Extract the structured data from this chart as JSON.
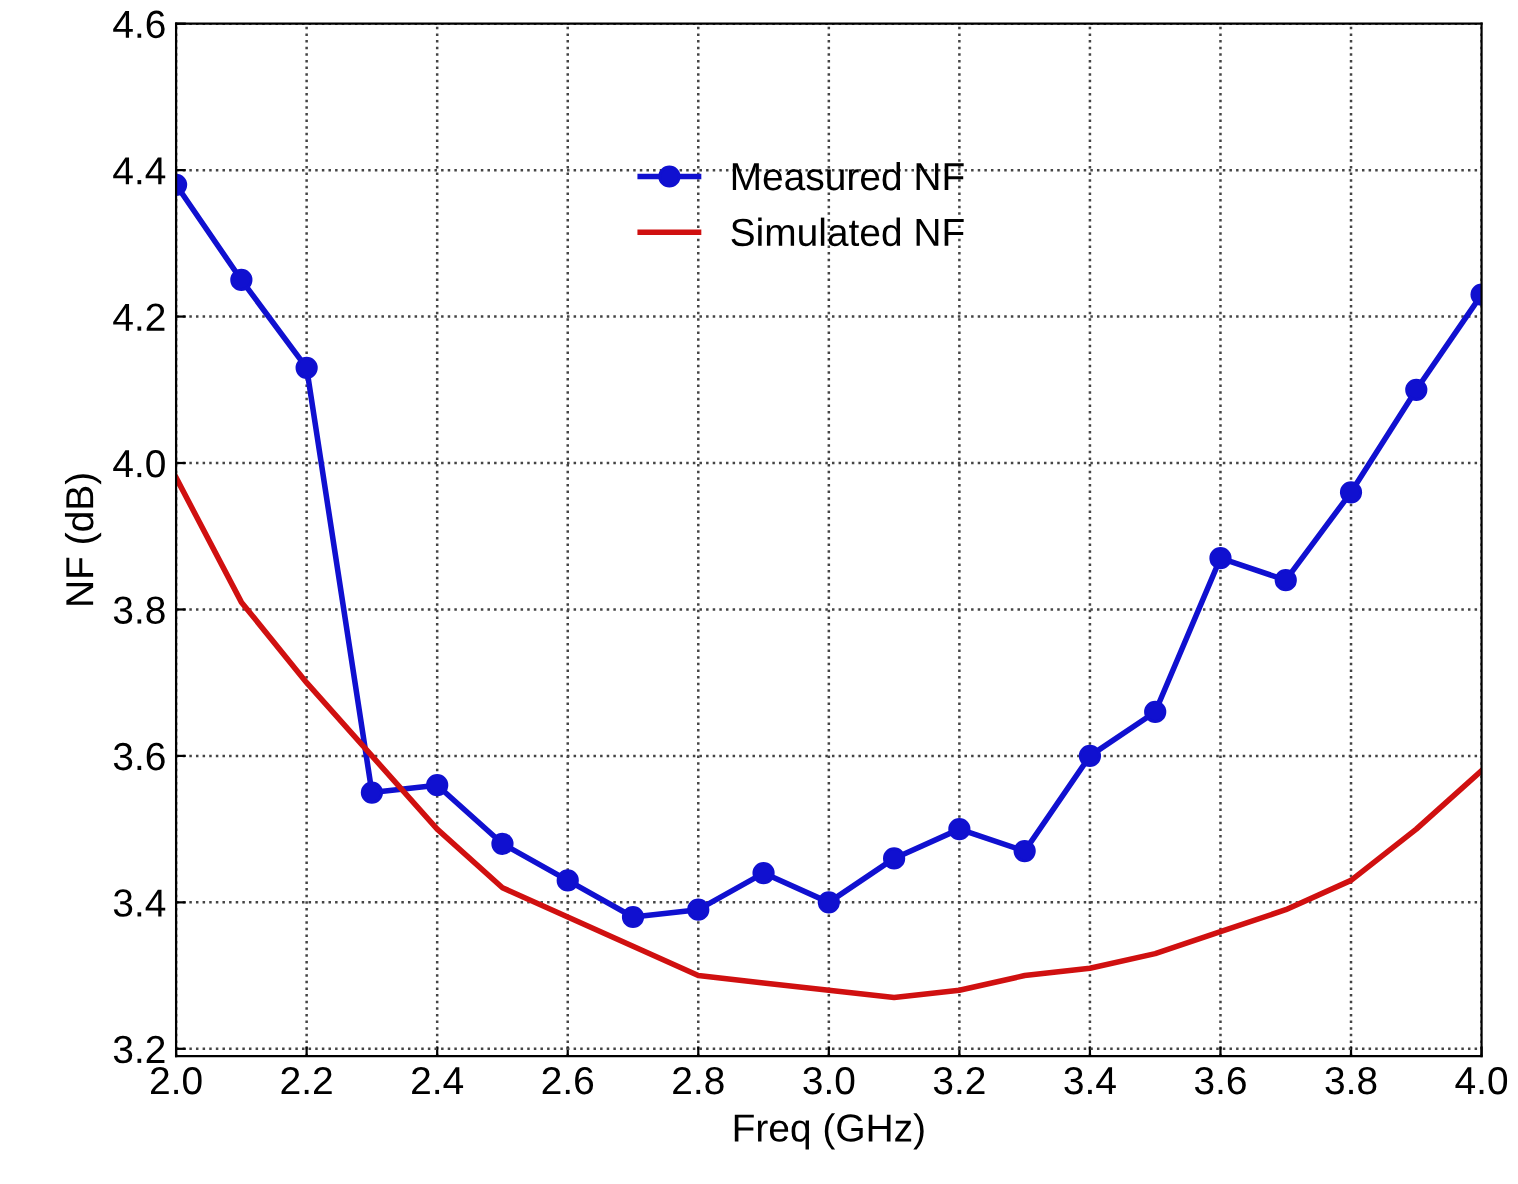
{
  "chart_data": {
    "type": "line",
    "xlabel": "Freq (GHz)",
    "ylabel": "NF (dB)",
    "x": [
      2.0,
      2.1,
      2.2,
      2.3,
      2.4,
      2.5,
      2.6,
      2.7,
      2.8,
      2.9,
      3.0,
      3.1,
      3.2,
      3.3,
      3.4,
      3.5,
      3.6,
      3.7,
      3.8,
      3.9,
      4.0
    ],
    "series": [
      {
        "name": "Measured NF",
        "color": "#1010d0",
        "marker": "circle",
        "values": [
          4.38,
          4.25,
          4.13,
          3.55,
          3.56,
          3.48,
          3.43,
          3.38,
          3.39,
          3.44,
          3.4,
          3.46,
          3.5,
          3.47,
          3.6,
          3.66,
          3.87,
          3.84,
          3.96,
          4.1,
          4.23
        ]
      },
      {
        "name": "Simulated NF",
        "color": "#d01010",
        "marker": "none",
        "values": [
          3.98,
          3.81,
          3.7,
          3.6,
          3.5,
          3.42,
          3.38,
          3.34,
          3.3,
          3.29,
          3.28,
          3.27,
          3.28,
          3.3,
          3.31,
          3.33,
          3.36,
          3.39,
          3.43,
          3.5,
          3.58
        ]
      }
    ],
    "xlim": [
      2.0,
      4.0
    ],
    "ylim": [
      3.19,
      4.6
    ],
    "xticks": [
      {
        "value": 2.0,
        "label": "2.0"
      },
      2.2,
      2.4,
      2.6,
      2.8,
      {
        "value": 3.0,
        "label": "3.0"
      },
      3.2,
      3.4,
      3.6,
      3.8,
      {
        "value": 4.0,
        "label": "4.0"
      }
    ],
    "yticks": [
      3.2,
      3.4,
      3.6,
      3.8,
      {
        "value": 4.0,
        "label": "4.0"
      },
      4.2,
      4.4,
      4.6
    ],
    "grid": true,
    "legend": "top",
    "line_style": "solid"
  }
}
